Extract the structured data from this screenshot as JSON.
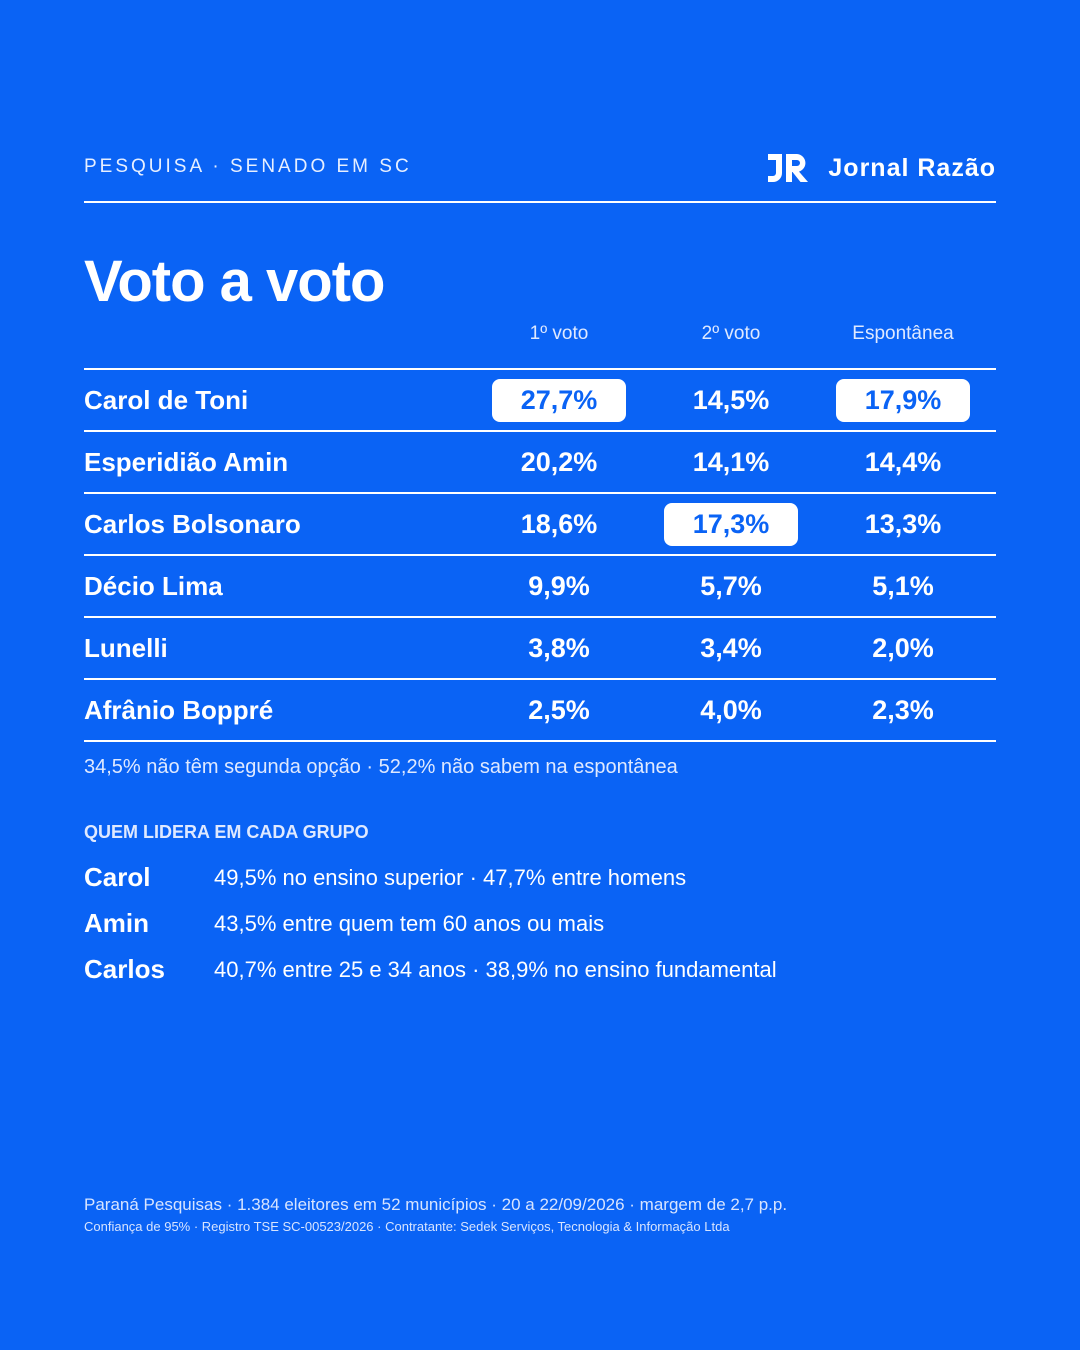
{
  "header": {
    "kicker": "PESQUISA · SENADO EM SC",
    "brand_name": "Jornal Razão",
    "brand_logo_icon": "jr-monogram-icon"
  },
  "title": "Voto a voto",
  "columns": [
    "1º voto",
    "2º voto",
    "Espontânea"
  ],
  "rows": [
    {
      "name": "Carol de Toni",
      "values": [
        "27,7%",
        "14,5%",
        "17,9%"
      ],
      "highlight": [
        true,
        false,
        true
      ]
    },
    {
      "name": "Esperidião Amin",
      "values": [
        "20,2%",
        "14,1%",
        "14,4%"
      ],
      "highlight": [
        false,
        false,
        false
      ]
    },
    {
      "name": "Carlos Bolsonaro",
      "values": [
        "18,6%",
        "17,3%",
        "13,3%"
      ],
      "highlight": [
        false,
        true,
        false
      ]
    },
    {
      "name": "Décio Lima",
      "values": [
        "9,9%",
        "5,7%",
        "5,1%"
      ],
      "highlight": [
        false,
        false,
        false
      ]
    },
    {
      "name": "Lunelli",
      "values": [
        "3,8%",
        "3,4%",
        "2,0%"
      ],
      "highlight": [
        false,
        false,
        false
      ]
    },
    {
      "name": "Afrânio Boppré",
      "values": [
        "2,5%",
        "4,0%",
        "2,3%"
      ],
      "highlight": [
        false,
        false,
        false
      ]
    }
  ],
  "note": "34,5% não têm segunda opção · 52,2% não sabem na espontânea",
  "groups": {
    "heading": "QUEM LIDERA EM CADA GRUPO",
    "items": [
      {
        "name": "Carol",
        "text": "49,5% no ensino superior · 47,7% entre homens"
      },
      {
        "name": "Amin",
        "text": "43,5% entre quem tem 60 anos ou mais"
      },
      {
        "name": "Carlos",
        "text": "40,7% entre 25 e 34 anos · 38,9% no ensino fundamental"
      }
    ]
  },
  "footer": {
    "line1": "Paraná Pesquisas · 1.384 eleitores em 52 municípios · 20 a 22/09/2026 · margem de 2,7 p.p.",
    "line2": "Confiança de 95% · Registro TSE SC-00523/2026 · Contratante: Sedek Serviços, Tecnologia & Informação Ltda"
  },
  "colors": {
    "background": "#0a63f5",
    "foreground": "#ffffff",
    "highlight_text": "#0a63f5"
  }
}
